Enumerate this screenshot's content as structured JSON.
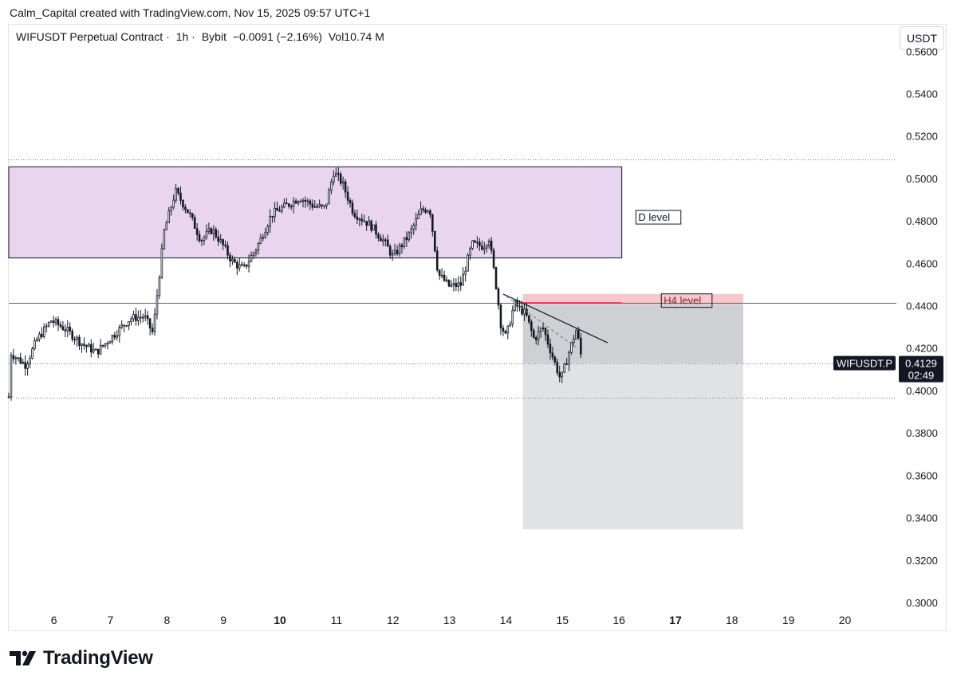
{
  "header": {
    "credit": "Calm_Capital created with TradingView.com, Nov 15, 2025 09:57 UTC+1"
  },
  "symbol_line": {
    "name": "WIFUSDT Perpetual Contract",
    "interval": "1h",
    "exchange": "Bybit",
    "change": "−0.0091 (−2.16%)",
    "volume": "Vol10.74 M"
  },
  "currency_button": "USDT",
  "footer": {
    "brand": "TradingView"
  },
  "colors": {
    "candle": "#131722",
    "d_zone": "#e9d5f0",
    "h4_zone": "#f7c7cb",
    "projection": "#e1e2e4",
    "grid": "#e0e3eb"
  },
  "chart_data": {
    "type": "candlestick",
    "y_axis": {
      "ylim": [
        0.2955,
        0.5725
      ],
      "ticks": [
        "0.5600",
        "0.5400",
        "0.5200",
        "0.5000",
        "0.4800",
        "0.4600",
        "0.4400",
        "0.4200",
        "0.4000",
        "0.3800",
        "0.3600",
        "0.3400",
        "0.3200",
        "0.3000"
      ]
    },
    "x_axis": {
      "range_days": [
        5.2,
        20.6
      ],
      "ticks": [
        {
          "day": 6,
          "label": "6",
          "bold": false
        },
        {
          "day": 7,
          "label": "7",
          "bold": false
        },
        {
          "day": 8,
          "label": "8",
          "bold": false
        },
        {
          "day": 9,
          "label": "9",
          "bold": false
        },
        {
          "day": 10,
          "label": "10",
          "bold": true
        },
        {
          "day": 11,
          "label": "11",
          "bold": false
        },
        {
          "day": 12,
          "label": "12",
          "bold": false
        },
        {
          "day": 13,
          "label": "13",
          "bold": false
        },
        {
          "day": 14,
          "label": "14",
          "bold": false
        },
        {
          "day": 15,
          "label": "15",
          "bold": false
        },
        {
          "day": 16,
          "label": "16",
          "bold": false
        },
        {
          "day": 17,
          "label": "17",
          "bold": true
        },
        {
          "day": 18,
          "label": "18",
          "bold": false
        },
        {
          "day": 19,
          "label": "19",
          "bold": false
        },
        {
          "day": 20,
          "label": "20",
          "bold": false
        }
      ]
    },
    "series_anchors": [
      {
        "day": 5.2,
        "price": 0.397
      },
      {
        "day": 5.22,
        "price": 0.418
      },
      {
        "day": 5.5,
        "price": 0.412
      },
      {
        "day": 5.7,
        "price": 0.424
      },
      {
        "day": 5.95,
        "price": 0.433
      },
      {
        "day": 6.2,
        "price": 0.429
      },
      {
        "day": 6.5,
        "price": 0.422
      },
      {
        "day": 6.75,
        "price": 0.418
      },
      {
        "day": 7.05,
        "price": 0.426
      },
      {
        "day": 7.35,
        "price": 0.434
      },
      {
        "day": 7.6,
        "price": 0.435
      },
      {
        "day": 7.75,
        "price": 0.427
      },
      {
        "day": 7.95,
        "price": 0.475
      },
      {
        "day": 8.15,
        "price": 0.494
      },
      {
        "day": 8.4,
        "price": 0.483
      },
      {
        "day": 8.6,
        "price": 0.471
      },
      {
        "day": 8.8,
        "price": 0.476
      },
      {
        "day": 9.0,
        "price": 0.468
      },
      {
        "day": 9.15,
        "price": 0.461
      },
      {
        "day": 9.35,
        "price": 0.457
      },
      {
        "day": 9.6,
        "price": 0.468
      },
      {
        "day": 9.85,
        "price": 0.483
      },
      {
        "day": 10.1,
        "price": 0.487
      },
      {
        "day": 10.35,
        "price": 0.491
      },
      {
        "day": 10.6,
        "price": 0.487
      },
      {
        "day": 10.8,
        "price": 0.486
      },
      {
        "day": 10.95,
        "price": 0.503
      },
      {
        "day": 11.1,
        "price": 0.498
      },
      {
        "day": 11.3,
        "price": 0.484
      },
      {
        "day": 11.6,
        "price": 0.478
      },
      {
        "day": 11.85,
        "price": 0.47
      },
      {
        "day": 12.0,
        "price": 0.463
      },
      {
        "day": 12.3,
        "price": 0.474
      },
      {
        "day": 12.5,
        "price": 0.485
      },
      {
        "day": 12.65,
        "price": 0.486
      },
      {
        "day": 12.8,
        "price": 0.455
      },
      {
        "day": 13.0,
        "price": 0.449
      },
      {
        "day": 13.2,
        "price": 0.45
      },
      {
        "day": 13.4,
        "price": 0.469
      },
      {
        "day": 13.6,
        "price": 0.468
      },
      {
        "day": 13.7,
        "price": 0.472
      },
      {
        "day": 13.85,
        "price": 0.445
      },
      {
        "day": 13.9,
        "price": 0.432
      },
      {
        "day": 14.0,
        "price": 0.425
      },
      {
        "day": 14.15,
        "price": 0.441
      },
      {
        "day": 14.35,
        "price": 0.436
      },
      {
        "day": 14.5,
        "price": 0.424
      },
      {
        "day": 14.65,
        "price": 0.43
      },
      {
        "day": 14.8,
        "price": 0.418
      },
      {
        "day": 14.97,
        "price": 0.405
      },
      {
        "day": 15.15,
        "price": 0.421
      },
      {
        "day": 15.25,
        "price": 0.429
      },
      {
        "day": 15.35,
        "price": 0.413
      }
    ],
    "zones": [
      {
        "label": "D level",
        "day_start": 5.2,
        "day_end": 16.05,
        "price_low": 0.4625,
        "price_high": 0.5055,
        "fill": "#e9d5f0"
      },
      {
        "label": "H4 level",
        "day_start": 14.3,
        "day_end": 18.2,
        "price_low": 0.4405,
        "price_high": 0.4455,
        "fill": "#f7c7cb"
      }
    ],
    "projection": {
      "day_start": 14.3,
      "day_end": 18.2,
      "entry": 0.4405,
      "current": 0.4129,
      "target": 0.3345
    },
    "levels": [
      {
        "price": 0.5088,
        "style": "dotted"
      },
      {
        "price": 0.4415,
        "style": "solid"
      },
      {
        "price": 0.4129,
        "style": "dotted"
      },
      {
        "price": 0.3965,
        "style": "dotted"
      }
    ],
    "trendline": {
      "from_day": 13.95,
      "from_price": 0.4455,
      "to_day": 15.8,
      "to_price": 0.4225
    },
    "last_price": {
      "symbol": "WIFUSDT.P",
      "price": "0.4129",
      "countdown": "02:49"
    }
  }
}
